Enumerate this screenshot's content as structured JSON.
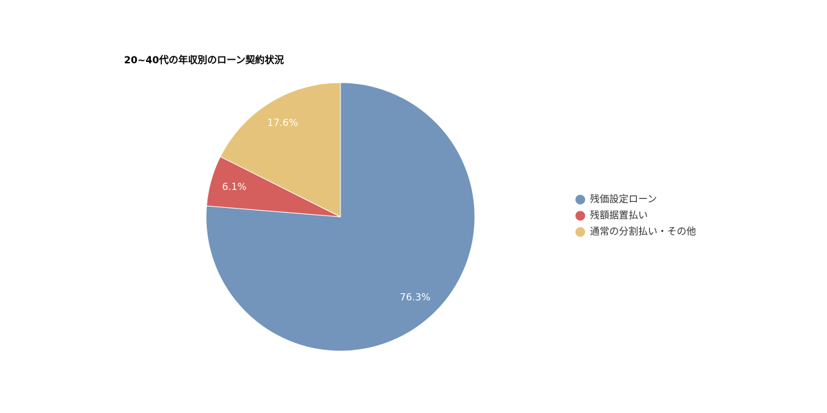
{
  "chart_data": {
    "type": "pie",
    "title": "20~40代の年収別のローン契約状況",
    "categories": [
      "残価設定ローン",
      "残額据置払い",
      "通常の分割払い・その他"
    ],
    "values": [
      76.3,
      6.1,
      17.6
    ],
    "value_labels": [
      "76.3%",
      "6.1%",
      "17.6%"
    ],
    "colors": [
      "#7394bb",
      "#d45f5d",
      "#e6c37a"
    ],
    "legend": "right"
  }
}
